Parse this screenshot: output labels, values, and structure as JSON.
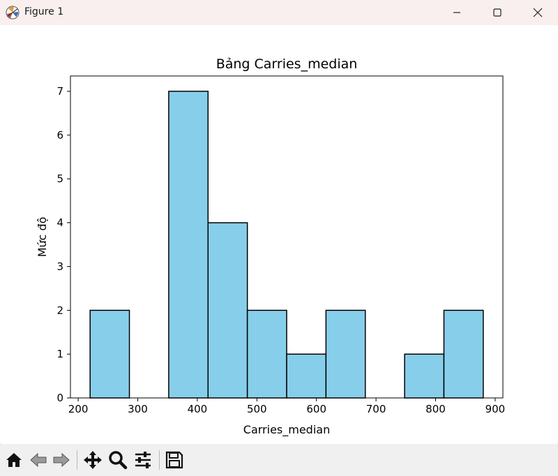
{
  "window": {
    "title": "Figure 1",
    "controls": [
      "minimize",
      "maximize",
      "close"
    ]
  },
  "toolbar": {
    "buttons": [
      {
        "name": "home-icon"
      },
      {
        "name": "back-icon"
      },
      {
        "name": "forward-icon"
      },
      {
        "name": "pan-icon"
      },
      {
        "name": "zoom-icon"
      },
      {
        "name": "configure-subplots-icon"
      },
      {
        "name": "save-icon"
      }
    ]
  },
  "colors": {
    "bar_fill": "#87ceeb",
    "bar_edge": "#000000",
    "titlebar": "#f9efef",
    "toolbar": "#f0f0f0"
  },
  "chart_data": {
    "type": "bar",
    "title": "Bảng Carries_median",
    "xlabel": "Carries_median",
    "ylabel": "Mức độ",
    "bins": [
      {
        "start": 220,
        "end": 286,
        "count": 2
      },
      {
        "start": 286,
        "end": 352,
        "count": 0
      },
      {
        "start": 352,
        "end": 418,
        "count": 7
      },
      {
        "start": 418,
        "end": 484,
        "count": 4
      },
      {
        "start": 484,
        "end": 550,
        "count": 2
      },
      {
        "start": 550,
        "end": 616,
        "count": 1
      },
      {
        "start": 616,
        "end": 682,
        "count": 2
      },
      {
        "start": 682,
        "end": 748,
        "count": 0
      },
      {
        "start": 748,
        "end": 814,
        "count": 1
      },
      {
        "start": 814,
        "end": 880,
        "count": 2
      }
    ],
    "xlim": [
      187,
      913
    ],
    "ylim": [
      0,
      7.35
    ],
    "xticks": [
      "200",
      "300",
      "400",
      "500",
      "600",
      "700",
      "800",
      "900"
    ],
    "yticks": [
      "0",
      "1",
      "2",
      "3",
      "4",
      "5",
      "6",
      "7"
    ],
    "grid": false
  }
}
